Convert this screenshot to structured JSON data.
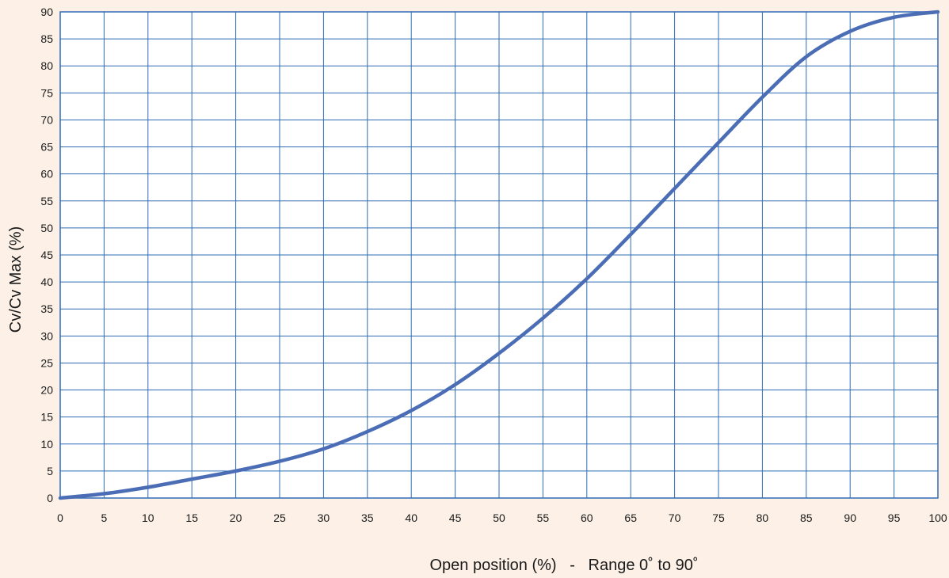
{
  "chart_data": {
    "type": "line",
    "title": "",
    "xlabel": "Open position (%)   -   Range 0˚ to 90˚",
    "ylabel": "Cv/Cv Max (%)",
    "xlim": [
      0,
      100
    ],
    "ylim": [
      0,
      90
    ],
    "x_ticks": [
      0,
      5,
      10,
      15,
      20,
      25,
      30,
      35,
      40,
      45,
      50,
      55,
      60,
      65,
      70,
      75,
      80,
      85,
      90,
      95,
      100
    ],
    "y_ticks": [
      0,
      5,
      10,
      15,
      20,
      25,
      30,
      35,
      40,
      45,
      50,
      55,
      60,
      65,
      70,
      75,
      80,
      85,
      90
    ],
    "grid": true,
    "colors": {
      "line": "#4a6db5",
      "grid": "#2f6bb5",
      "background": "#fdf1e7",
      "plot_background": "#ffffff"
    },
    "series": [
      {
        "x": [
          0,
          5,
          10,
          15,
          20,
          25,
          30,
          35,
          40,
          45,
          50,
          55,
          60,
          65,
          70,
          75,
          80,
          85,
          90,
          95,
          100
        ],
        "y": [
          0,
          0.8,
          2,
          3.5,
          5,
          6.8,
          9.1,
          12.3,
          16.2,
          21,
          26.8,
          33.3,
          40.6,
          48.8,
          57.3,
          65.8,
          74.2,
          81.7,
          86.4,
          89,
          90
        ]
      }
    ]
  }
}
